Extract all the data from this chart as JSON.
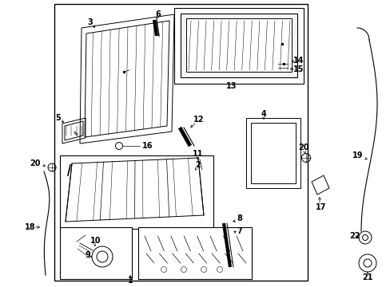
{
  "bg": "#ffffff",
  "lc": "#000000",
  "fw": 4.89,
  "fh": 3.6,
  "dpi": 100,
  "fontsize": 7
}
